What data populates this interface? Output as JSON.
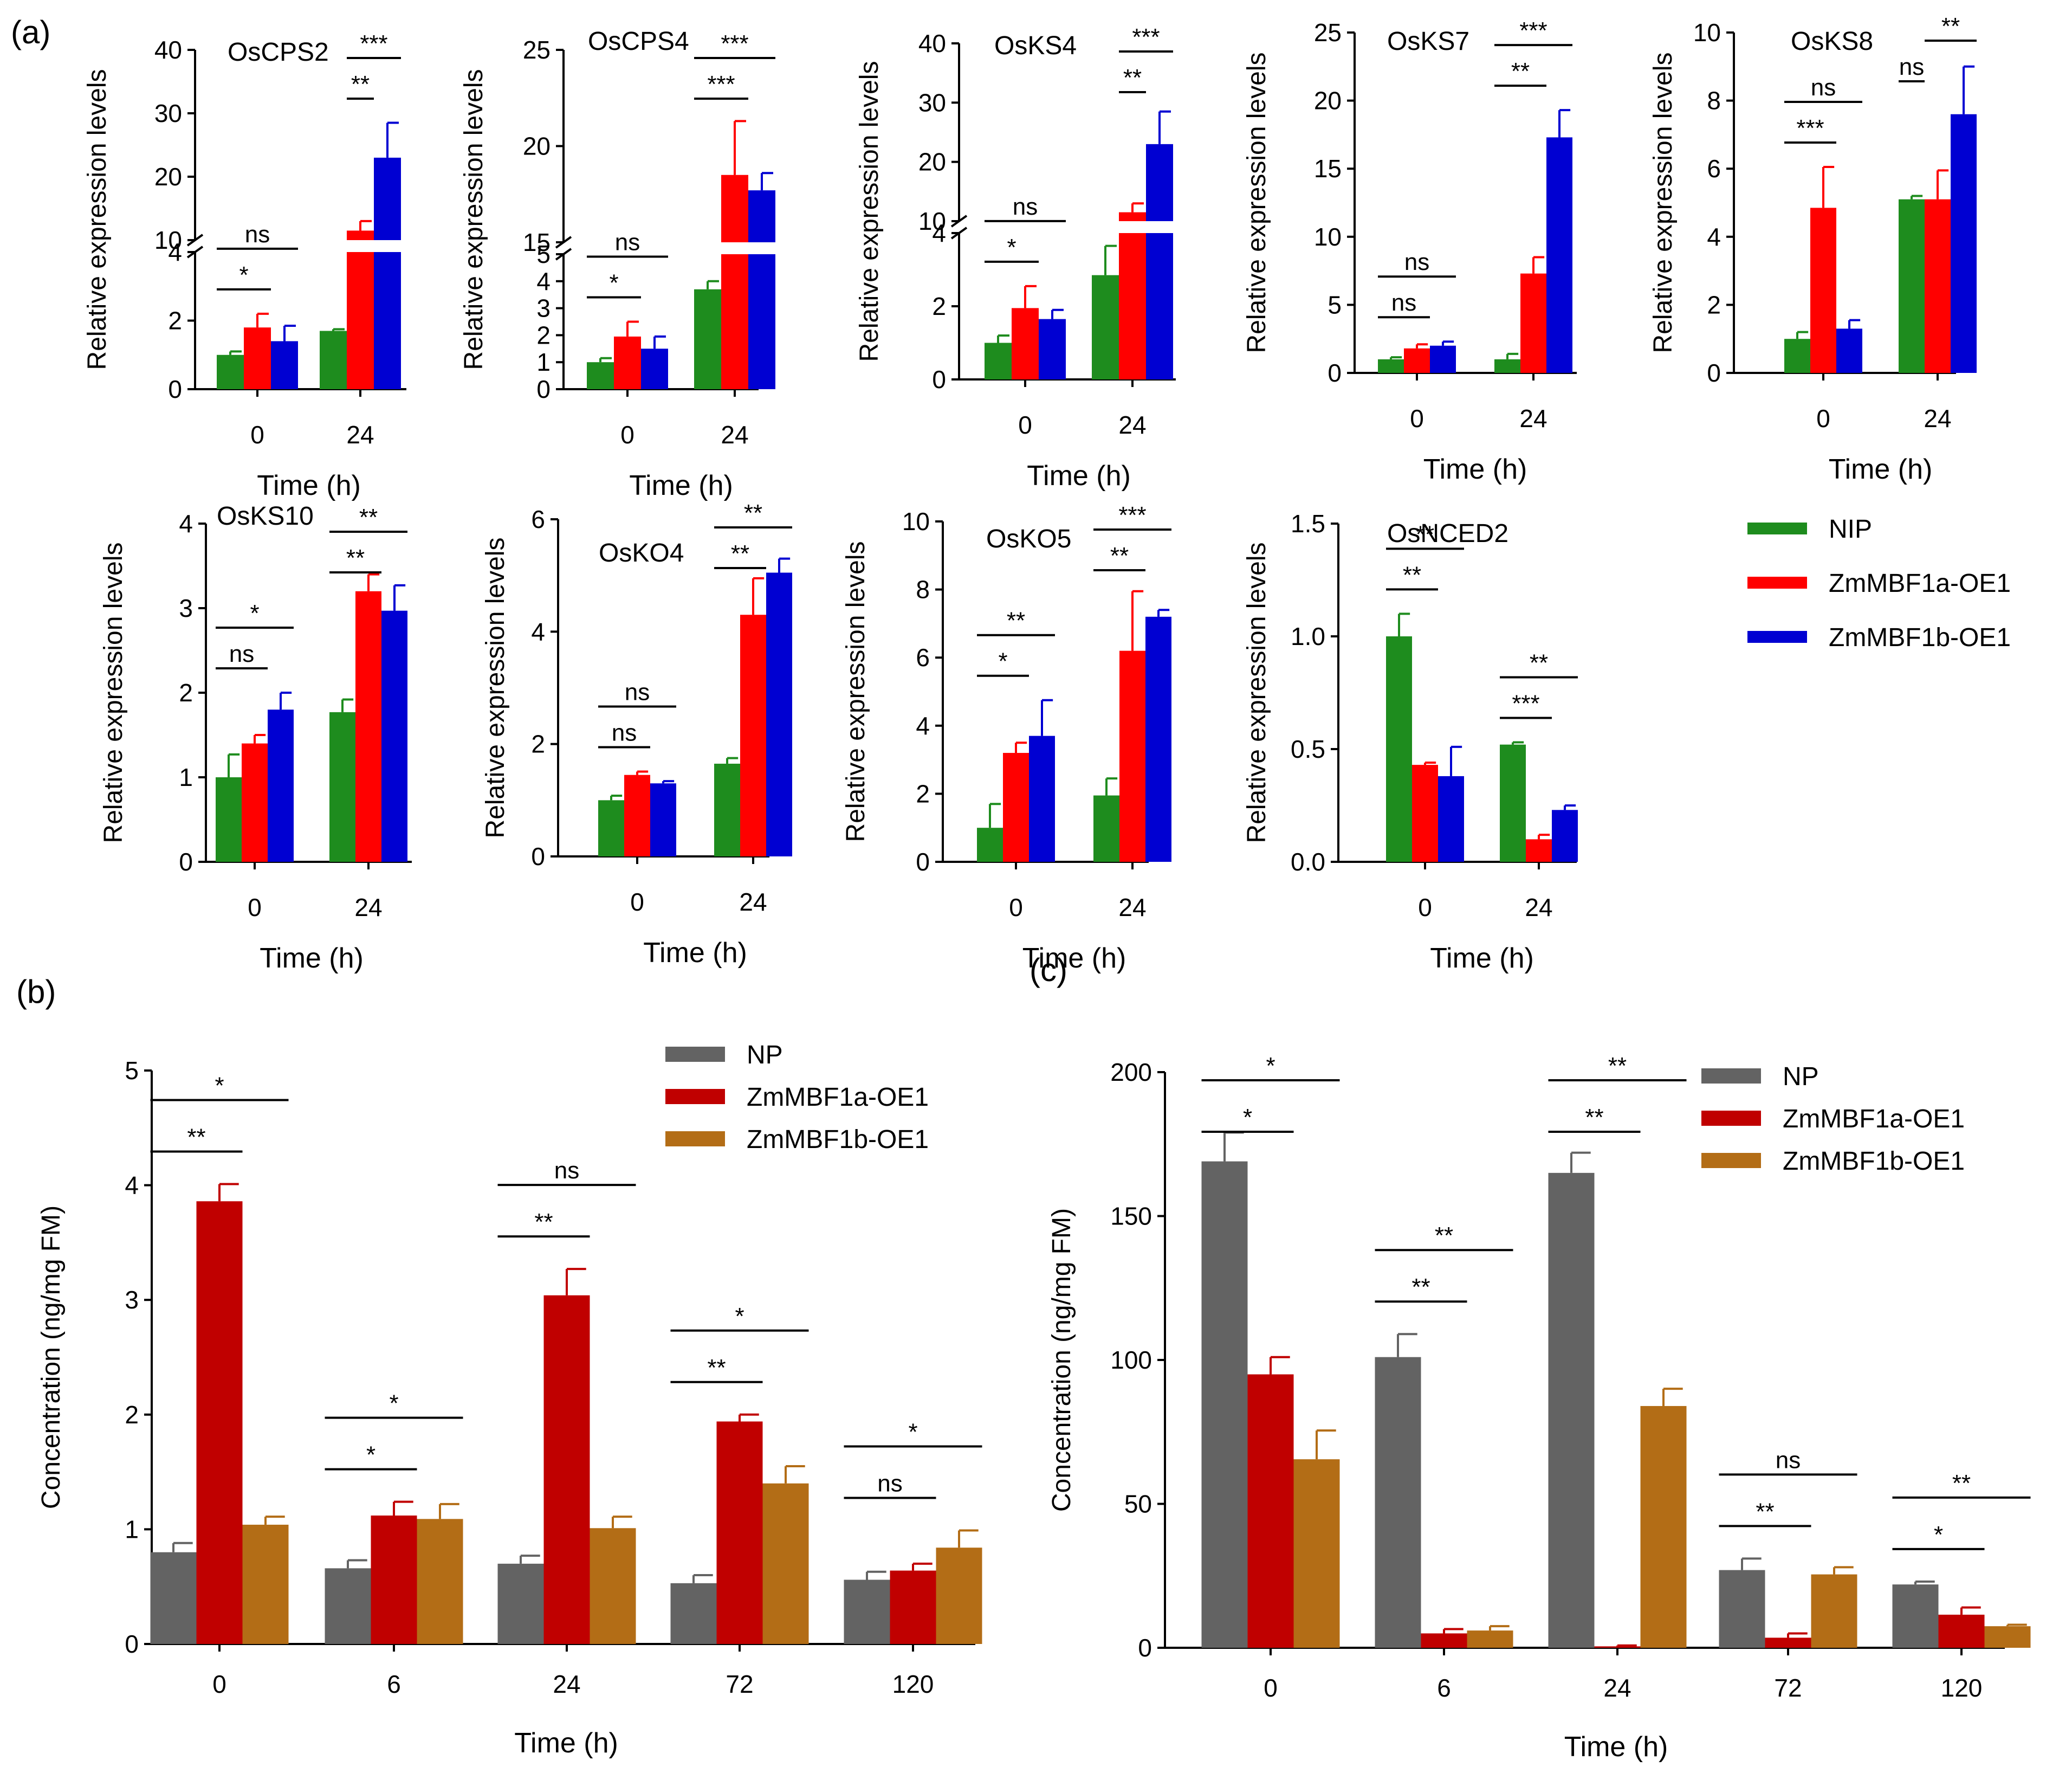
{
  "labels": {
    "a": "(a)",
    "b": "(b)",
    "c": "(c)"
  },
  "chart_data": [
    {
      "panel": "a",
      "title": "OsCPS2",
      "type": "bar",
      "broken_axis": true,
      "ylabel": "Relative expression levels",
      "xlabel": "Time (h)",
      "categories": [
        "0",
        "24"
      ],
      "upper_ticks": [
        10,
        20,
        30,
        40
      ],
      "lower_ticks": [
        0,
        2,
        4
      ],
      "series": [
        {
          "name": "NIP",
          "values": [
            1.0,
            1.7
          ],
          "errors": [
            0.1,
            0.05
          ]
        },
        {
          "name": "ZmMBF1a-OE1",
          "values": [
            1.8,
            11.5
          ],
          "errors": [
            0.4,
            1.5
          ]
        },
        {
          "name": "ZmMBF1b-OE1",
          "values": [
            1.4,
            23
          ],
          "errors": [
            0.45,
            5.5
          ]
        }
      ],
      "annotations": [
        {
          "label": "*",
          "group": 0,
          "from": 0,
          "to": 1
        },
        {
          "label": "ns",
          "group": 0,
          "from": 0,
          "to": 2
        },
        {
          "label": "**",
          "group": 1,
          "from": 1,
          "to": 1
        },
        {
          "label": "***",
          "group": 1,
          "from": 1,
          "to": 2
        }
      ]
    },
    {
      "panel": "a",
      "title": "OsCPS4",
      "type": "bar",
      "broken_axis": true,
      "ylabel": "Relative expression levels",
      "xlabel": "Time (h)",
      "categories": [
        "0",
        "24"
      ],
      "upper_ticks": [
        15,
        20,
        25
      ],
      "lower_ticks": [
        0,
        1,
        2,
        3,
        4,
        5
      ],
      "series": [
        {
          "name": "NIP",
          "values": [
            1.0,
            3.7
          ],
          "errors": [
            0.15,
            0.3
          ]
        },
        {
          "name": "ZmMBF1a-OE1",
          "values": [
            1.95,
            18.5
          ],
          "errors": [
            0.55,
            2.8
          ]
        },
        {
          "name": "ZmMBF1b-OE1",
          "values": [
            1.5,
            17.7
          ],
          "errors": [
            0.45,
            0.9
          ]
        }
      ],
      "annotations": [
        {
          "label": "*",
          "group": 0,
          "from": 0,
          "to": 1
        },
        {
          "label": "ns",
          "group": 0,
          "from": 0,
          "to": 2
        },
        {
          "label": "***",
          "group": 1,
          "from": 0,
          "to": 1
        },
        {
          "label": "***",
          "group": 1,
          "from": 0,
          "to": 2
        }
      ]
    },
    {
      "panel": "a",
      "title": "OsKS4",
      "type": "bar",
      "broken_axis": true,
      "ylabel": "Relative expression levels",
      "xlabel": "Time (h)",
      "categories": [
        "0",
        "24"
      ],
      "upper_ticks": [
        10,
        20,
        30,
        40
      ],
      "lower_ticks": [
        0,
        2,
        4
      ],
      "series": [
        {
          "name": "NIP",
          "values": [
            1.0,
            2.85
          ],
          "errors": [
            0.2,
            0.8
          ]
        },
        {
          "name": "ZmMBF1a-OE1",
          "values": [
            1.95,
            11.5
          ],
          "errors": [
            0.6,
            1.5
          ]
        },
        {
          "name": "ZmMBF1b-OE1",
          "values": [
            1.65,
            23
          ],
          "errors": [
            0.25,
            5.5
          ]
        }
      ],
      "annotations": [
        {
          "label": "*",
          "group": 0,
          "from": 0,
          "to": 1
        },
        {
          "label": "ns",
          "group": 0,
          "from": 0,
          "to": 2
        },
        {
          "label": "**",
          "group": 1,
          "from": 1,
          "to": 1
        },
        {
          "label": "***",
          "group": 1,
          "from": 1,
          "to": 2
        }
      ]
    },
    {
      "panel": "a",
      "title": "OsKS7",
      "type": "bar",
      "broken_axis": false,
      "ylabel": "Relative expression levels",
      "xlabel": "Time (h)",
      "categories": [
        "0",
        "24"
      ],
      "ymax": 25,
      "ticks": [
        0,
        5,
        10,
        15,
        20,
        25
      ],
      "series": [
        {
          "name": "NIP",
          "values": [
            1.0,
            1.0
          ],
          "errors": [
            0.15,
            0.4
          ]
        },
        {
          "name": "ZmMBF1a-OE1",
          "values": [
            1.8,
            7.3
          ],
          "errors": [
            0.3,
            1.2
          ]
        },
        {
          "name": "ZmMBF1b-OE1",
          "values": [
            2.0,
            17.3
          ],
          "errors": [
            0.3,
            2.0
          ]
        }
      ],
      "annotations": [
        {
          "label": "ns",
          "group": 0,
          "from": 0,
          "to": 1
        },
        {
          "label": "ns",
          "group": 0,
          "from": 0,
          "to": 2
        },
        {
          "label": "**",
          "group": 1,
          "from": 0,
          "to": 1
        },
        {
          "label": "***",
          "group": 1,
          "from": 0,
          "to": 2
        }
      ]
    },
    {
      "panel": "a",
      "title": "OsKS8",
      "type": "bar",
      "broken_axis": false,
      "ylabel": "Relative expression levels",
      "xlabel": "Time (h)",
      "categories": [
        "0",
        "24"
      ],
      "ymax": 10,
      "ticks": [
        0,
        2,
        4,
        6,
        8,
        10
      ],
      "series": [
        {
          "name": "NIP",
          "values": [
            1.0,
            5.1
          ],
          "errors": [
            0.2,
            0.1
          ]
        },
        {
          "name": "ZmMBF1a-OE1",
          "values": [
            4.85,
            5.1
          ],
          "errors": [
            1.2,
            0.85
          ]
        },
        {
          "name": "ZmMBF1b-OE1",
          "values": [
            1.3,
            7.6
          ],
          "errors": [
            0.25,
            1.4
          ]
        }
      ],
      "annotations": [
        {
          "label": "***",
          "group": 0,
          "from": 0,
          "to": 1
        },
        {
          "label": "ns",
          "group": 0,
          "from": 0,
          "to": 2
        },
        {
          "label": "ns",
          "group": 1,
          "from": 0,
          "to": 0
        },
        {
          "label": "**",
          "group": 1,
          "from": 1,
          "to": 2
        }
      ]
    },
    {
      "panel": "a",
      "title": "OsKS10",
      "type": "bar",
      "broken_axis": false,
      "ylabel": "Relative expression levels",
      "xlabel": "Time (h)",
      "categories": [
        "0",
        "24"
      ],
      "ymax": 4,
      "ticks": [
        0,
        1,
        2,
        3,
        4
      ],
      "series": [
        {
          "name": "NIP",
          "values": [
            1.0,
            1.77
          ],
          "errors": [
            0.27,
            0.15
          ]
        },
        {
          "name": "ZmMBF1a-OE1",
          "values": [
            1.4,
            3.2
          ],
          "errors": [
            0.1,
            0.2
          ]
        },
        {
          "name": "ZmMBF1b-OE1",
          "values": [
            1.8,
            2.97
          ],
          "errors": [
            0.2,
            0.3
          ]
        }
      ],
      "annotations": [
        {
          "label": "ns",
          "group": 0,
          "from": 0,
          "to": 1
        },
        {
          "label": "*",
          "group": 0,
          "from": 0,
          "to": 2
        },
        {
          "label": "**",
          "group": 1,
          "from": 0,
          "to": 1
        },
        {
          "label": "**",
          "group": 1,
          "from": 0,
          "to": 2
        }
      ]
    },
    {
      "panel": "a",
      "title": "OsKO4",
      "type": "bar",
      "broken_axis": false,
      "ylabel": "Relative expression levels",
      "xlabel": "Time (h)",
      "categories": [
        "0",
        "24"
      ],
      "ymax": 6,
      "ticks": [
        0,
        2,
        4,
        6
      ],
      "series": [
        {
          "name": "NIP",
          "values": [
            1.0,
            1.65
          ],
          "errors": [
            0.08,
            0.1
          ]
        },
        {
          "name": "ZmMBF1a-OE1",
          "values": [
            1.45,
            4.3
          ],
          "errors": [
            0.06,
            0.65
          ]
        },
        {
          "name": "ZmMBF1b-OE1",
          "values": [
            1.3,
            5.05
          ],
          "errors": [
            0.04,
            0.25
          ]
        }
      ],
      "annotations": [
        {
          "label": "ns",
          "group": 0,
          "from": 0,
          "to": 1
        },
        {
          "label": "ns",
          "group": 0,
          "from": 0,
          "to": 2
        },
        {
          "label": "**",
          "group": 1,
          "from": 0,
          "to": 1
        },
        {
          "label": "**",
          "group": 1,
          "from": 0,
          "to": 2
        }
      ]
    },
    {
      "panel": "a",
      "title": "OsKO5",
      "type": "bar",
      "broken_axis": false,
      "ylabel": "Relative expression levels",
      "xlabel": "Time (h)",
      "categories": [
        "0",
        "24"
      ],
      "ymax": 10,
      "ticks": [
        0,
        2,
        4,
        6,
        8,
        10
      ],
      "series": [
        {
          "name": "NIP",
          "values": [
            1.0,
            1.95
          ],
          "errors": [
            0.7,
            0.5
          ]
        },
        {
          "name": "ZmMBF1a-OE1",
          "values": [
            3.2,
            6.2
          ],
          "errors": [
            0.3,
            1.75
          ]
        },
        {
          "name": "ZmMBF1b-OE1",
          "values": [
            3.7,
            7.2
          ],
          "errors": [
            1.05,
            0.2
          ]
        }
      ],
      "annotations": [
        {
          "label": "*",
          "group": 0,
          "from": 0,
          "to": 1
        },
        {
          "label": "**",
          "group": 0,
          "from": 0,
          "to": 2
        },
        {
          "label": "**",
          "group": 1,
          "from": 0,
          "to": 1
        },
        {
          "label": "***",
          "group": 1,
          "from": 0,
          "to": 2
        }
      ]
    },
    {
      "panel": "a",
      "title": "OsNCED2",
      "type": "bar",
      "broken_axis": false,
      "ylabel": "Relative expression levels",
      "xlabel": "Time (h)",
      "categories": [
        "0",
        "24"
      ],
      "ymax": 1.5,
      "ticks": [
        0,
        0.5,
        1.0,
        1.5
      ],
      "tick_labels": [
        "0.0",
        "0.5",
        "1.0",
        "1.5"
      ],
      "series": [
        {
          "name": "NIP",
          "values": [
            1.0,
            0.52
          ],
          "errors": [
            0.1,
            0.01
          ]
        },
        {
          "name": "ZmMBF1a-OE1",
          "values": [
            0.43,
            0.1
          ],
          "errors": [
            0.01,
            0.02
          ]
        },
        {
          "name": "ZmMBF1b-OE1",
          "values": [
            0.38,
            0.23
          ],
          "errors": [
            0.13,
            0.02
          ]
        }
      ],
      "annotations": [
        {
          "label": "**",
          "group": 0,
          "from": 0,
          "to": 1
        },
        {
          "label": "**",
          "group": 0,
          "from": 0,
          "to": 2
        },
        {
          "label": "***",
          "group": 1,
          "from": 0,
          "to": 1
        },
        {
          "label": "**",
          "group": 1,
          "from": 0,
          "to": 2
        }
      ]
    },
    {
      "panel": "b",
      "title": "",
      "type": "bar",
      "broken_axis": false,
      "ylabel": "Concentration (ng/mg FM)",
      "xlabel": "Time (h)",
      "categories": [
        "0",
        "6",
        "24",
        "72",
        "120"
      ],
      "ymax": 5,
      "ticks": [
        0,
        1,
        2,
        3,
        4,
        5
      ],
      "series": [
        {
          "name": "NP",
          "values": [
            0.8,
            0.66,
            0.7,
            0.53,
            0.56
          ],
          "errors": [
            0.08,
            0.07,
            0.07,
            0.07,
            0.07
          ]
        },
        {
          "name": "ZmMBF1a-OE1",
          "values": [
            3.86,
            1.12,
            3.04,
            1.94,
            0.64
          ],
          "errors": [
            0.15,
            0.12,
            0.23,
            0.06,
            0.06
          ]
        },
        {
          "name": "ZmMBF1b-OE1",
          "values": [
            1.04,
            1.09,
            1.01,
            1.4,
            0.84
          ],
          "errors": [
            0.07,
            0.13,
            0.1,
            0.15,
            0.15
          ]
        }
      ],
      "annotations": [
        {
          "label": "**",
          "group": 0,
          "from": 0,
          "to": 1
        },
        {
          "label": "*",
          "group": 0,
          "from": 0,
          "to": 2
        },
        {
          "label": "*",
          "group": 1,
          "from": 0,
          "to": 1
        },
        {
          "label": "*",
          "group": 1,
          "from": 0,
          "to": 2
        },
        {
          "label": "**",
          "group": 2,
          "from": 0,
          "to": 1
        },
        {
          "label": "ns",
          "group": 2,
          "from": 0,
          "to": 2
        },
        {
          "label": "**",
          "group": 3,
          "from": 0,
          "to": 1
        },
        {
          "label": "*",
          "group": 3,
          "from": 0,
          "to": 2
        },
        {
          "label": "ns",
          "group": 4,
          "from": 0,
          "to": 1
        },
        {
          "label": "*",
          "group": 4,
          "from": 0,
          "to": 2
        }
      ]
    },
    {
      "panel": "c",
      "title": "",
      "type": "bar",
      "broken_axis": false,
      "ylabel": "Concentration (ng/mg FM)",
      "xlabel": "Time (h)",
      "categories": [
        "0",
        "6",
        "24",
        "72",
        "120"
      ],
      "ymax": 200,
      "ticks": [
        0,
        50,
        100,
        150,
        200
      ],
      "series": [
        {
          "name": "NP",
          "values": [
            169,
            101,
            165,
            27,
            22
          ],
          "errors": [
            10,
            8,
            7,
            4,
            1
          ]
        },
        {
          "name": "ZmMBF1a-OE1",
          "values": [
            95,
            5,
            0.5,
            3.5,
            11.5
          ],
          "errors": [
            6,
            1.5,
            0.3,
            1.5,
            2.5
          ]
        },
        {
          "name": "ZmMBF1b-OE1",
          "values": [
            65.5,
            6,
            84,
            25.5,
            7.5
          ],
          "errors": [
            10,
            1.5,
            6,
            2.5,
            0.5
          ]
        }
      ],
      "annotations": [
        {
          "label": "*",
          "group": 0,
          "from": 0,
          "to": 1
        },
        {
          "label": "*",
          "group": 0,
          "from": 0,
          "to": 2
        },
        {
          "label": "**",
          "group": 1,
          "from": 0,
          "to": 1
        },
        {
          "label": "**",
          "group": 1,
          "from": 0,
          "to": 2
        },
        {
          "label": "**",
          "group": 2,
          "from": 0,
          "to": 1
        },
        {
          "label": "**",
          "group": 2,
          "from": 0,
          "to": 2
        },
        {
          "label": "**",
          "group": 3,
          "from": 0,
          "to": 1
        },
        {
          "label": "ns",
          "group": 3,
          "from": 0,
          "to": 2
        },
        {
          "label": "*",
          "group": 4,
          "from": 0,
          "to": 1
        },
        {
          "label": "**",
          "group": 4,
          "from": 0,
          "to": 2
        }
      ]
    }
  ],
  "legends": {
    "a": [
      {
        "label": "NIP",
        "color": "#1e8c1e"
      },
      {
        "label": "ZmMBF1a-OE1",
        "color": "#ff0000"
      },
      {
        "label": "ZmMBF1b-OE1",
        "color": "#0000d2"
      }
    ],
    "b": [
      {
        "label": "NP",
        "color": "#636363"
      },
      {
        "label": "ZmMBF1a-OE1",
        "color": "#c00000"
      },
      {
        "label": "ZmMBF1b-OE1",
        "color": "#b36d16"
      }
    ],
    "c": [
      {
        "label": "NP",
        "color": "#636363"
      },
      {
        "label": "ZmMBF1a-OE1",
        "color": "#c00000"
      },
      {
        "label": "ZmMBF1b-OE1",
        "color": "#b36d16"
      }
    ]
  },
  "colors": {
    "a": [
      "#1e8c1e",
      "#ff0000",
      "#0000d2"
    ],
    "bc": [
      "#636363",
      "#c00000",
      "#b36d16"
    ]
  }
}
